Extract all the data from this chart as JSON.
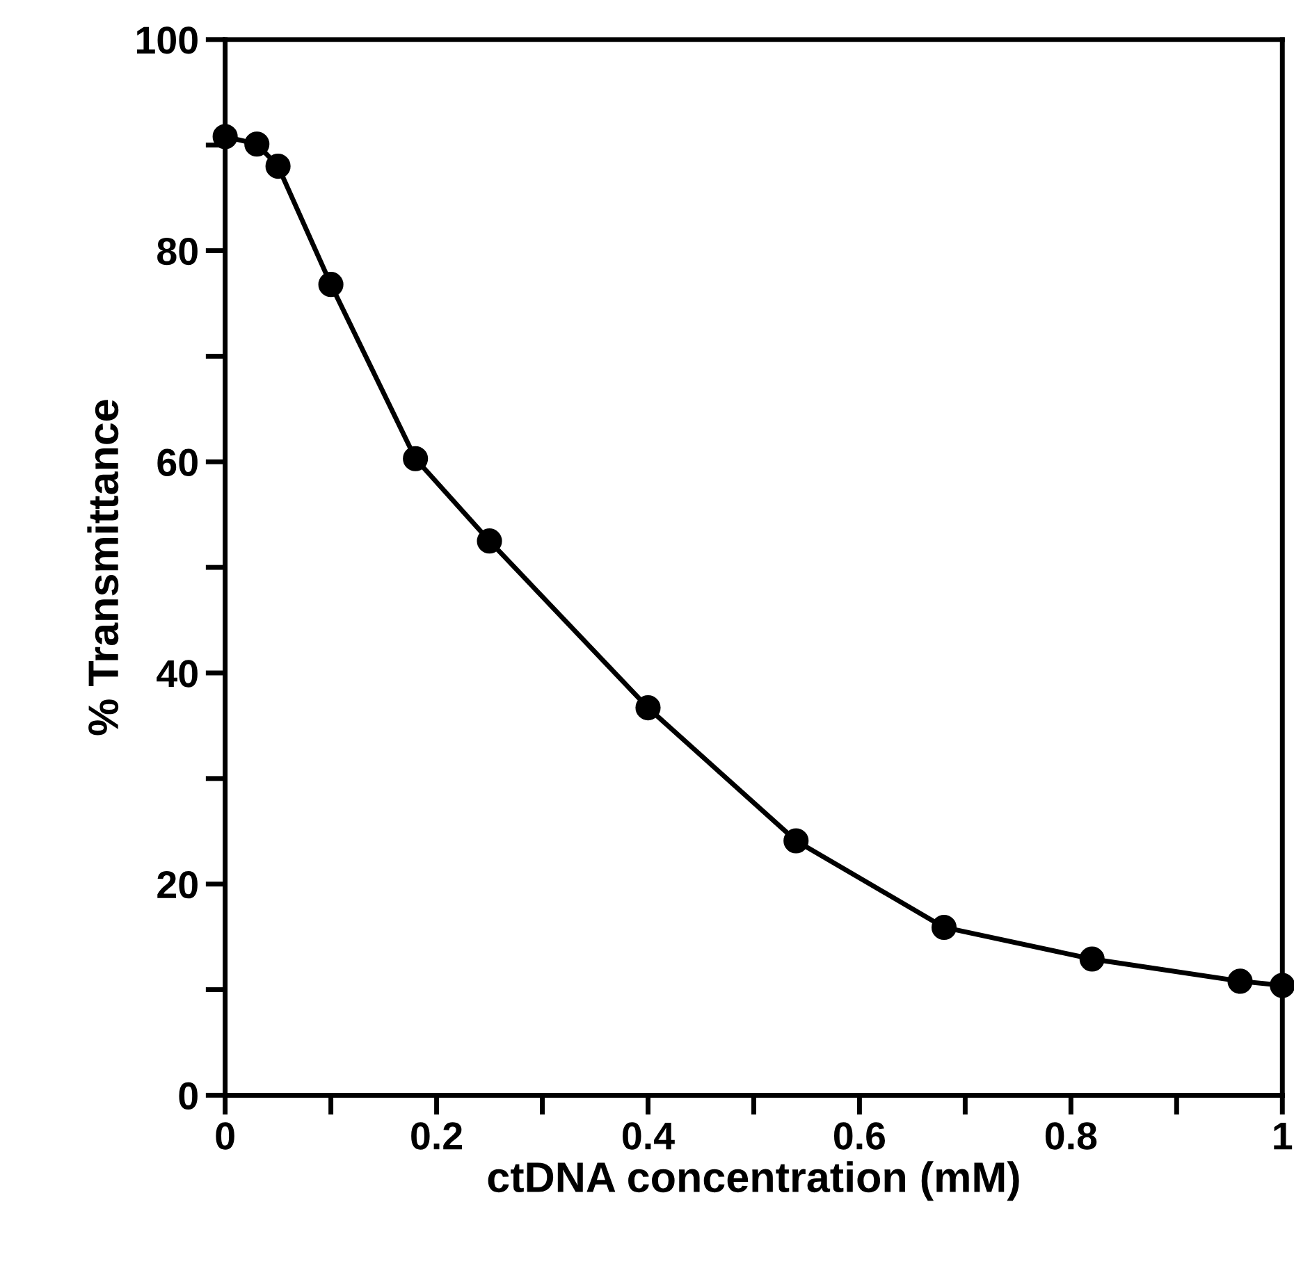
{
  "chart_data": {
    "type": "line",
    "xlabel": "ctDNA concentration (mM)",
    "ylabel": "% Transmittance",
    "x": [
      0,
      0.03,
      0.05,
      0.1,
      0.18,
      0.25,
      0.4,
      0.54,
      0.68,
      0.82,
      0.96,
      1.0
    ],
    "series": [
      {
        "color": "#000000",
        "values": [
          90.8,
          90.1,
          88.0,
          76.8,
          60.3,
          52.5,
          36.7,
          24.1,
          15.9,
          12.9,
          10.8,
          10.4
        ]
      }
    ],
    "marker": "circle",
    "line_style": "solid",
    "grid": false,
    "legend": false,
    "xlim": [
      0,
      1
    ],
    "ylim": [
      0,
      100
    ],
    "xticks": [
      0,
      {
        "value": 0.1,
        "label": null
      },
      0.2,
      {
        "value": 0.3,
        "label": null
      },
      0.4,
      {
        "value": 0.5,
        "label": null
      },
      0.6,
      {
        "value": 0.7,
        "label": null
      },
      0.8,
      {
        "value": 0.9,
        "label": null
      },
      1
    ],
    "yticks": [
      0,
      {
        "value": 10,
        "label": null
      },
      20,
      {
        "value": 30,
        "label": null
      },
      40,
      {
        "value": 50,
        "label": null
      },
      60,
      {
        "value": 70,
        "label": null
      },
      80,
      {
        "value": 90,
        "label": null
      },
      100
    ]
  }
}
